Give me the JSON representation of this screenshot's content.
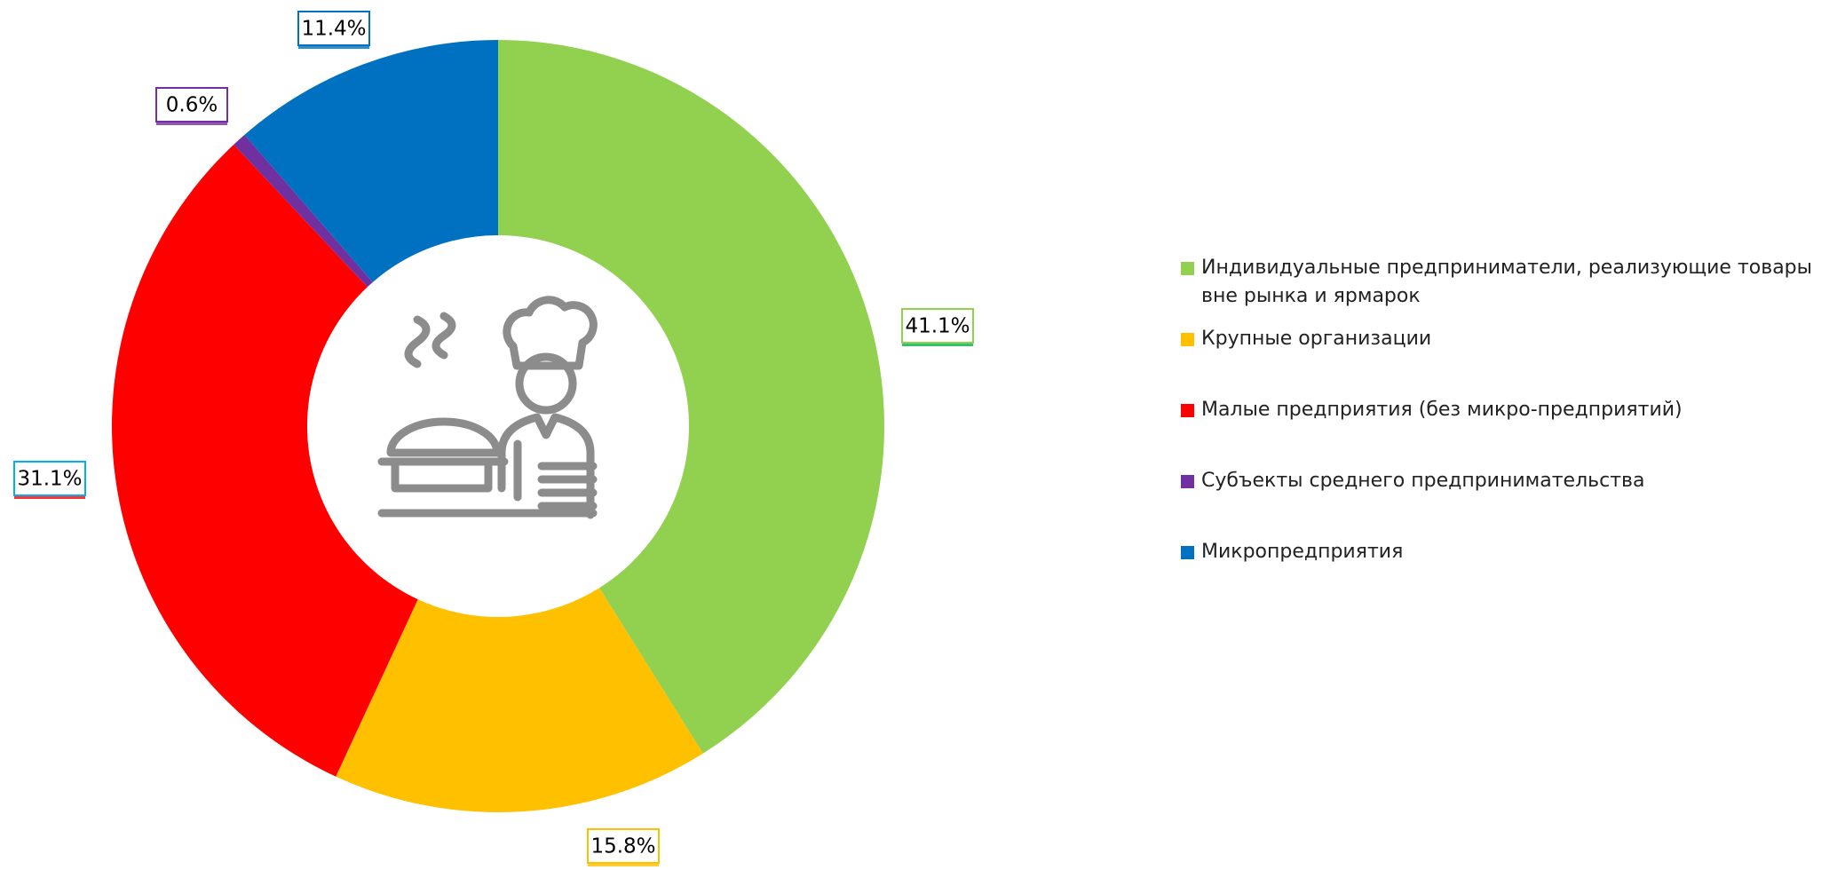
{
  "chart_data": {
    "type": "donut",
    "categories": [
      "Индивидуальные предприниматели, реализующие товары вне рынка и ярмарок",
      "Крупные организации",
      "Малые предприятия (без микро-предприятий)",
      "Субъекты среднего предпринимательства",
      "Микропредприятия"
    ],
    "values": [
      41.1,
      15.8,
      31.1,
      0.6,
      11.4
    ],
    "value_labels": [
      "41.1%",
      "15.8%",
      "31.1%",
      "0.6%",
      "11.4%"
    ],
    "colors": [
      "#92d050",
      "#ffc000",
      "#ff0000",
      "#7030a0",
      "#0070c0"
    ],
    "legend": "right"
  }
}
